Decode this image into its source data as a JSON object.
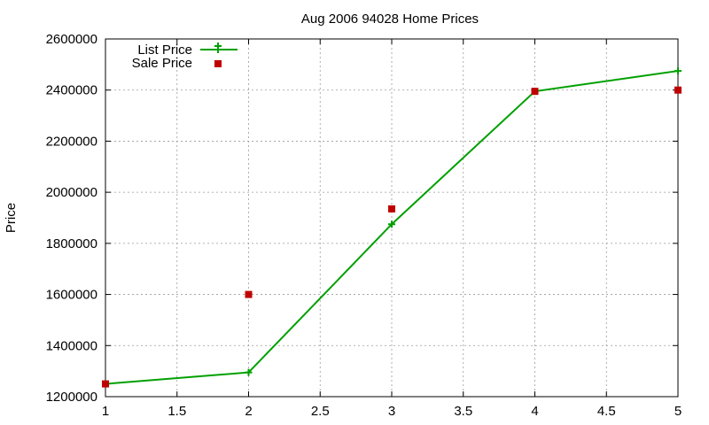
{
  "chart_data": {
    "type": "line",
    "title": "Aug 2006 94028 Home Prices",
    "xlabel": "",
    "ylabel": "Price",
    "xlim": [
      1,
      5
    ],
    "ylim": [
      1200000,
      2600000
    ],
    "x_ticks": [
      "1",
      "1.5",
      "2",
      "2.5",
      "3",
      "3.5",
      "4",
      "4.5",
      "5"
    ],
    "y_ticks": [
      "1200000",
      "1400000",
      "1600000",
      "1800000",
      "2000000",
      "2200000",
      "2400000",
      "2600000"
    ],
    "grid": true,
    "legend_position": "top-left",
    "series": [
      {
        "name": "List Price",
        "style": "line-with-plus-markers",
        "color": "#00a000",
        "x": [
          1,
          2,
          3,
          4,
          5
        ],
        "y": [
          1250000,
          1295000,
          1875000,
          2395000,
          2475000
        ]
      },
      {
        "name": "Sale Price",
        "style": "square-markers",
        "color": "#c00000",
        "x": [
          1,
          2,
          3,
          4,
          5
        ],
        "y": [
          1250000,
          1600000,
          1935000,
          2395000,
          2400000
        ]
      }
    ]
  }
}
